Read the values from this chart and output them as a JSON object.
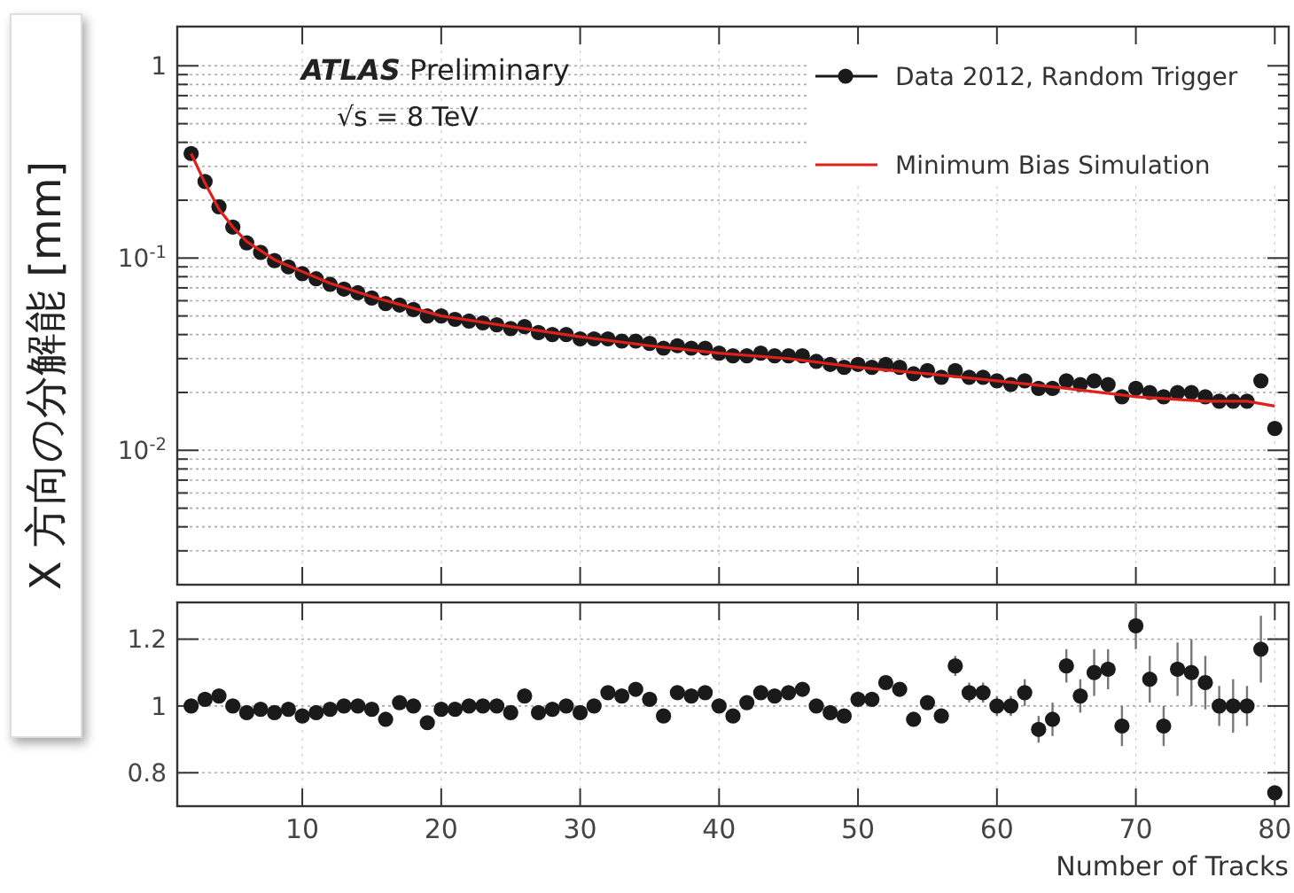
{
  "chart_data": [
    {
      "type": "scatter",
      "ylabel": "X 方向の分解能 [mm]",
      "annotations": [
        "ATLAS  Preliminary",
        "√s = 8 TeV"
      ],
      "log": "y",
      "grid": true,
      "legend": "top right",
      "tick_labels": "y",
      "xlim": [
        1,
        81
      ],
      "ylim": [
        0.002,
        1.6
      ],
      "xticks": [
        10,
        20,
        30,
        40,
        50,
        60,
        70,
        80
      ],
      "yticks": [
        {
          "value": 0.002,
          "label": null
        },
        {
          "value": 0.003,
          "label": null
        },
        {
          "value": 0.004,
          "label": null
        },
        {
          "value": 0.005,
          "label": null
        },
        {
          "value": 0.006,
          "label": null
        },
        {
          "value": 0.007,
          "label": null
        },
        {
          "value": 0.008,
          "label": null
        },
        {
          "value": 0.009,
          "label": null
        },
        {
          "value": 0.01,
          "label": "10$^{-2}$"
        },
        {
          "value": 0.02,
          "label": null
        },
        {
          "value": 0.03,
          "label": null
        },
        {
          "value": 0.04,
          "label": null
        },
        {
          "value": 0.05,
          "label": null
        },
        {
          "value": 0.06,
          "label": null
        },
        {
          "value": 0.07,
          "label": null
        },
        {
          "value": 0.08,
          "label": null
        },
        {
          "value": 0.09,
          "label": null
        },
        {
          "value": 0.1,
          "label": "10$^{-1}$"
        },
        {
          "value": 0.2,
          "label": null
        },
        {
          "value": 0.3,
          "label": null
        },
        {
          "value": 0.4,
          "label": null
        },
        {
          "value": 0.5,
          "label": null
        },
        {
          "value": 0.6,
          "label": null
        },
        {
          "value": 0.7,
          "label": null
        },
        {
          "value": 0.8,
          "label": null
        },
        {
          "value": 0.9,
          "label": null
        },
        1
      ],
      "series": [
        {
          "name": "Data 2012, Random Trigger",
          "marker": "circle",
          "color": "#1a1a1a",
          "x": [
            2,
            3,
            4,
            5,
            6,
            7,
            8,
            9,
            10,
            11,
            12,
            13,
            14,
            15,
            16,
            17,
            18,
            19,
            20,
            21,
            22,
            23,
            24,
            25,
            26,
            27,
            28,
            29,
            30,
            31,
            32,
            33,
            34,
            35,
            36,
            37,
            38,
            39,
            40,
            41,
            42,
            43,
            44,
            45,
            46,
            47,
            48,
            49,
            50,
            51,
            52,
            53,
            54,
            55,
            56,
            57,
            58,
            59,
            60,
            61,
            62,
            63,
            64,
            65,
            66,
            67,
            68,
            69,
            70,
            71,
            72,
            73,
            74,
            75,
            76,
            77,
            78,
            79,
            80
          ],
          "values": [
            0.35,
            0.25,
            0.185,
            0.145,
            0.12,
            0.107,
            0.097,
            0.09,
            0.083,
            0.078,
            0.073,
            0.069,
            0.066,
            0.062,
            0.058,
            0.057,
            0.054,
            0.05,
            0.05,
            0.048,
            0.047,
            0.046,
            0.045,
            0.043,
            0.044,
            0.041,
            0.04,
            0.04,
            0.038,
            0.038,
            0.038,
            0.037,
            0.037,
            0.036,
            0.034,
            0.035,
            0.034,
            0.034,
            0.032,
            0.031,
            0.031,
            0.032,
            0.031,
            0.031,
            0.031,
            0.029,
            0.028,
            0.027,
            0.028,
            0.027,
            0.028,
            0.027,
            0.025,
            0.026,
            0.024,
            0.026,
            0.024,
            0.024,
            0.023,
            0.022,
            0.023,
            0.021,
            0.021,
            0.023,
            0.022,
            0.023,
            0.022,
            0.019,
            0.021,
            0.02,
            0.019,
            0.02,
            0.02,
            0.019,
            0.018,
            0.018,
            0.018,
            0.023,
            0.013
          ]
        },
        {
          "name": "Minimum Bias Simulation",
          "type": "line",
          "color": "#e0201b",
          "x": [
            2,
            3,
            4,
            5,
            6,
            8,
            10,
            12,
            15,
            20,
            25,
            30,
            35,
            40,
            45,
            50,
            55,
            60,
            65,
            70,
            75,
            78,
            80
          ],
          "values": [
            0.35,
            0.245,
            0.18,
            0.145,
            0.122,
            0.098,
            0.085,
            0.074,
            0.063,
            0.05,
            0.044,
            0.039,
            0.035,
            0.032,
            0.03,
            0.027,
            0.025,
            0.023,
            0.021,
            0.019,
            0.018,
            0.018,
            0.017
          ]
        }
      ]
    },
    {
      "type": "scatter",
      "xlabel": "Number of Tracks",
      "grid": true,
      "marker": "circle",
      "xlim": [
        1,
        81
      ],
      "ylim": [
        0.7,
        1.31
      ],
      "xticks": [
        10,
        20,
        30,
        40,
        50,
        60,
        70,
        80
      ],
      "yticks": [
        0.8,
        1,
        1.2
      ],
      "series": [
        {
          "color": "#1a1a1a",
          "x": [
            2,
            3,
            4,
            5,
            6,
            7,
            8,
            9,
            10,
            11,
            12,
            13,
            14,
            15,
            16,
            17,
            18,
            19,
            20,
            21,
            22,
            23,
            24,
            25,
            26,
            27,
            28,
            29,
            30,
            31,
            32,
            33,
            34,
            35,
            36,
            37,
            38,
            39,
            40,
            41,
            42,
            43,
            44,
            45,
            46,
            47,
            48,
            49,
            50,
            51,
            52,
            53,
            54,
            55,
            56,
            57,
            58,
            59,
            60,
            61,
            62,
            63,
            64,
            65,
            66,
            67,
            68,
            69,
            70,
            71,
            72,
            73,
            74,
            75,
            76,
            77,
            78,
            79,
            80
          ],
          "values": [
            1.0,
            1.02,
            1.03,
            1.0,
            0.98,
            0.99,
            0.98,
            0.99,
            0.97,
            0.98,
            0.99,
            1.0,
            1.0,
            0.99,
            0.96,
            1.01,
            1.0,
            0.95,
            0.99,
            0.99,
            1.0,
            1.0,
            1.0,
            0.98,
            1.03,
            0.98,
            0.99,
            1.0,
            0.98,
            1.0,
            1.04,
            1.03,
            1.05,
            1.02,
            0.97,
            1.04,
            1.03,
            1.04,
            1.0,
            0.97,
            1.01,
            1.04,
            1.03,
            1.04,
            1.05,
            1.0,
            0.98,
            0.97,
            1.02,
            1.02,
            1.07,
            1.05,
            0.96,
            1.01,
            0.97,
            1.12,
            1.04,
            1.04,
            1.0,
            1.0,
            1.04,
            0.93,
            0.96,
            1.12,
            1.03,
            1.1,
            1.11,
            0.94,
            1.24,
            1.08,
            0.94,
            1.11,
            1.1,
            1.07,
            1.0,
            1.0,
            1.0,
            1.17,
            0.74
          ],
          "errors": [
            null,
            null,
            null,
            null,
            null,
            null,
            null,
            null,
            null,
            null,
            null,
            null,
            null,
            null,
            null,
            null,
            null,
            null,
            null,
            null,
            null,
            null,
            null,
            null,
            null,
            null,
            null,
            null,
            null,
            null,
            null,
            null,
            null,
            null,
            null,
            null,
            null,
            null,
            null,
            null,
            null,
            null,
            null,
            null,
            null,
            null,
            null,
            null,
            null,
            null,
            null,
            null,
            null,
            null,
            null,
            0.03,
            0.03,
            0.03,
            0.03,
            0.03,
            0.04,
            0.04,
            0.05,
            0.05,
            0.05,
            0.07,
            0.06,
            0.06,
            0.07,
            0.07,
            0.06,
            0.08,
            0.1,
            0.08,
            0.06,
            0.08,
            0.06,
            0.1,
            null
          ]
        }
      ]
    }
  ]
}
